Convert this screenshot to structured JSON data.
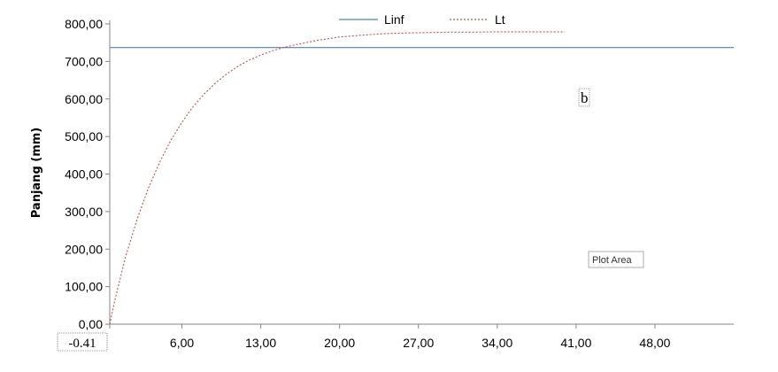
{
  "chart_data": {
    "type": "line",
    "title": "",
    "xlabel": "",
    "ylabel": "Panjang (mm)",
    "xlim": [
      -0.41,
      55
    ],
    "ylim": [
      0,
      800
    ],
    "y_ticks": [
      "0,00",
      "100,00",
      "200,00",
      "300,00",
      "400,00",
      "500,00",
      "600,00",
      "700,00",
      "800,00"
    ],
    "y_tick_values": [
      0,
      100,
      200,
      300,
      400,
      500,
      600,
      700,
      800
    ],
    "x_ticks": [
      "-0.41",
      "6,00",
      "13,00",
      "20,00",
      "27,00",
      "34,00",
      "41,00",
      "48,00"
    ],
    "x_tick_values": [
      -0.41,
      6,
      13,
      20,
      27,
      34,
      41,
      48
    ],
    "legend_position": "top-center",
    "series": [
      {
        "name": "Linf",
        "color": "#4f81bd",
        "style": "solid",
        "x": [
          -0.41,
          55
        ],
        "y": [
          737,
          737
        ]
      },
      {
        "name": "Lt",
        "color": "#c0504d",
        "style": "dotted",
        "x": [
          -0.41,
          0,
          1,
          2,
          3,
          4,
          5,
          6,
          7,
          8,
          9,
          10,
          11,
          12,
          13,
          14,
          15,
          16,
          18,
          20,
          22,
          24,
          26,
          28,
          30,
          32,
          34,
          36,
          38,
          40
        ],
        "y": [
          0,
          58,
          180,
          278,
          361,
          430,
          489,
          538,
          580,
          614,
          643,
          667,
          688,
          704,
          717,
          728,
          737,
          744,
          756,
          765,
          770,
          774,
          776,
          777,
          778,
          778,
          779,
          779,
          779,
          779
        ]
      }
    ],
    "annotations": [
      "b",
      "Plot Area"
    ],
    "grid": false
  }
}
